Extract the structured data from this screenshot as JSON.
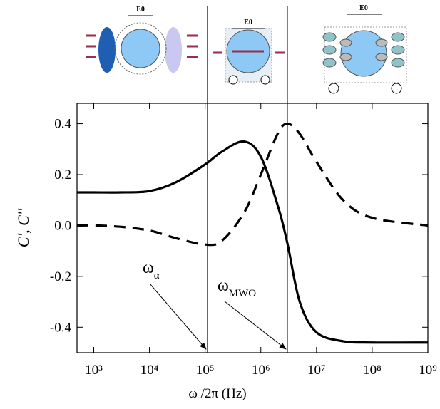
{
  "chart_data": {
    "type": "line",
    "x_label": "ω /2π (Hz)",
    "y_label": "C', C''",
    "log_x": true,
    "xlim": [
      500,
      1000000000
    ],
    "ylim": [
      -0.5,
      0.48
    ],
    "xticks": [
      {
        "value": 1000,
        "label": "10³"
      },
      {
        "value": 10000,
        "label": "10⁴"
      },
      {
        "value": 100000,
        "label": "10⁵"
      },
      {
        "value": 1000000,
        "label": "10⁶"
      },
      {
        "value": 10000000,
        "label": "10⁷"
      },
      {
        "value": 100000000,
        "label": "10⁸"
      },
      {
        "value": 1000000000,
        "label": "10⁹"
      }
    ],
    "yticks": [
      -0.4,
      -0.2,
      {
        "value": 0,
        "label": "0.0"
      },
      0.2,
      0.4
    ],
    "x": [
      500,
      1000,
      3000,
      10000,
      30000,
      100000,
      200000,
      500000,
      1000000,
      2000000,
      3000000,
      5000000,
      10000000,
      30000000,
      100000000,
      1000000000
    ],
    "series": [
      {
        "color": "#000000",
        "dash": false,
        "values": [
          0.13,
          0.13,
          0.13,
          0.135,
          0.17,
          0.24,
          0.29,
          0.33,
          0.27,
          0.08,
          -0.07,
          -0.3,
          -0.42,
          -0.455,
          -0.46,
          -0.46
        ]
      },
      {
        "color": "#000000",
        "dash": true,
        "values": [
          0,
          0,
          -0.005,
          -0.02,
          -0.05,
          -0.075,
          -0.06,
          0.05,
          0.2,
          0.36,
          0.4,
          0.36,
          0.25,
          0.1,
          0.03,
          0
        ]
      }
    ],
    "vlines": [
      110000,
      3000000
    ],
    "annotations": [
      {
        "text": "ω",
        "sub": "α"
      },
      {
        "text": "ω",
        "sub": "MWO"
      }
    ],
    "diagram_labels": [
      "E0",
      "E0",
      "E0"
    ]
  }
}
